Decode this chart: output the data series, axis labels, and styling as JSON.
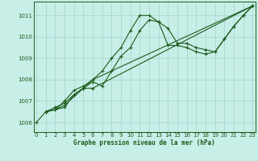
{
  "bg_color": "#c8eee8",
  "fig_color": "#c8eee8",
  "grid_color": "#a8d8d0",
  "line_color": "#1a5c1a",
  "marker": "+",
  "xlabel": "Graphe pression niveau de la mer (hPa)",
  "xlabel_color": "#1a5c1a",
  "ylabel_ticks": [
    1006,
    1007,
    1008,
    1009,
    1010,
    1011
  ],
  "xlim": [
    -0.3,
    23.3
  ],
  "ylim": [
    1005.55,
    1011.65
  ],
  "line1_x": [
    0,
    1,
    2,
    3,
    4,
    5,
    6,
    7,
    8,
    9,
    10,
    11,
    12,
    13,
    14,
    15,
    16,
    17,
    18,
    19,
    20,
    21,
    22,
    23
  ],
  "line1_y": [
    1006.0,
    1006.5,
    1006.6,
    1007.0,
    1007.5,
    1007.7,
    1008.0,
    1008.4,
    1009.0,
    1009.5,
    1010.3,
    1011.0,
    1011.0,
    1010.7,
    1009.6,
    1009.6,
    1009.5,
    1009.3,
    1009.2,
    1009.3,
    1009.9,
    1010.5,
    1011.0,
    1011.45
  ],
  "line2_x": [
    1,
    2,
    3,
    4,
    5,
    6,
    7,
    8,
    9,
    10,
    11,
    12,
    13,
    14,
    15,
    16,
    17,
    18,
    19,
    20,
    21,
    22,
    23
  ],
  "line2_y": [
    1006.5,
    1006.6,
    1006.7,
    1007.3,
    1007.6,
    1007.9,
    1007.7,
    1008.4,
    1009.1,
    1009.5,
    1010.3,
    1010.8,
    1010.7,
    1010.4,
    1009.7,
    1009.7,
    1009.5,
    1009.4,
    1009.3,
    1009.9,
    1010.5,
    1011.0,
    1011.45
  ],
  "line3_x": [
    1,
    2,
    3,
    5,
    6,
    23
  ],
  "line3_y": [
    1006.5,
    1006.6,
    1006.8,
    1007.6,
    1007.6,
    1011.45
  ],
  "line4_x": [
    1,
    2,
    3,
    4,
    5,
    6,
    23
  ],
  "line4_y": [
    1006.5,
    1006.7,
    1006.9,
    1007.3,
    1007.6,
    1008.0,
    1011.45
  ]
}
